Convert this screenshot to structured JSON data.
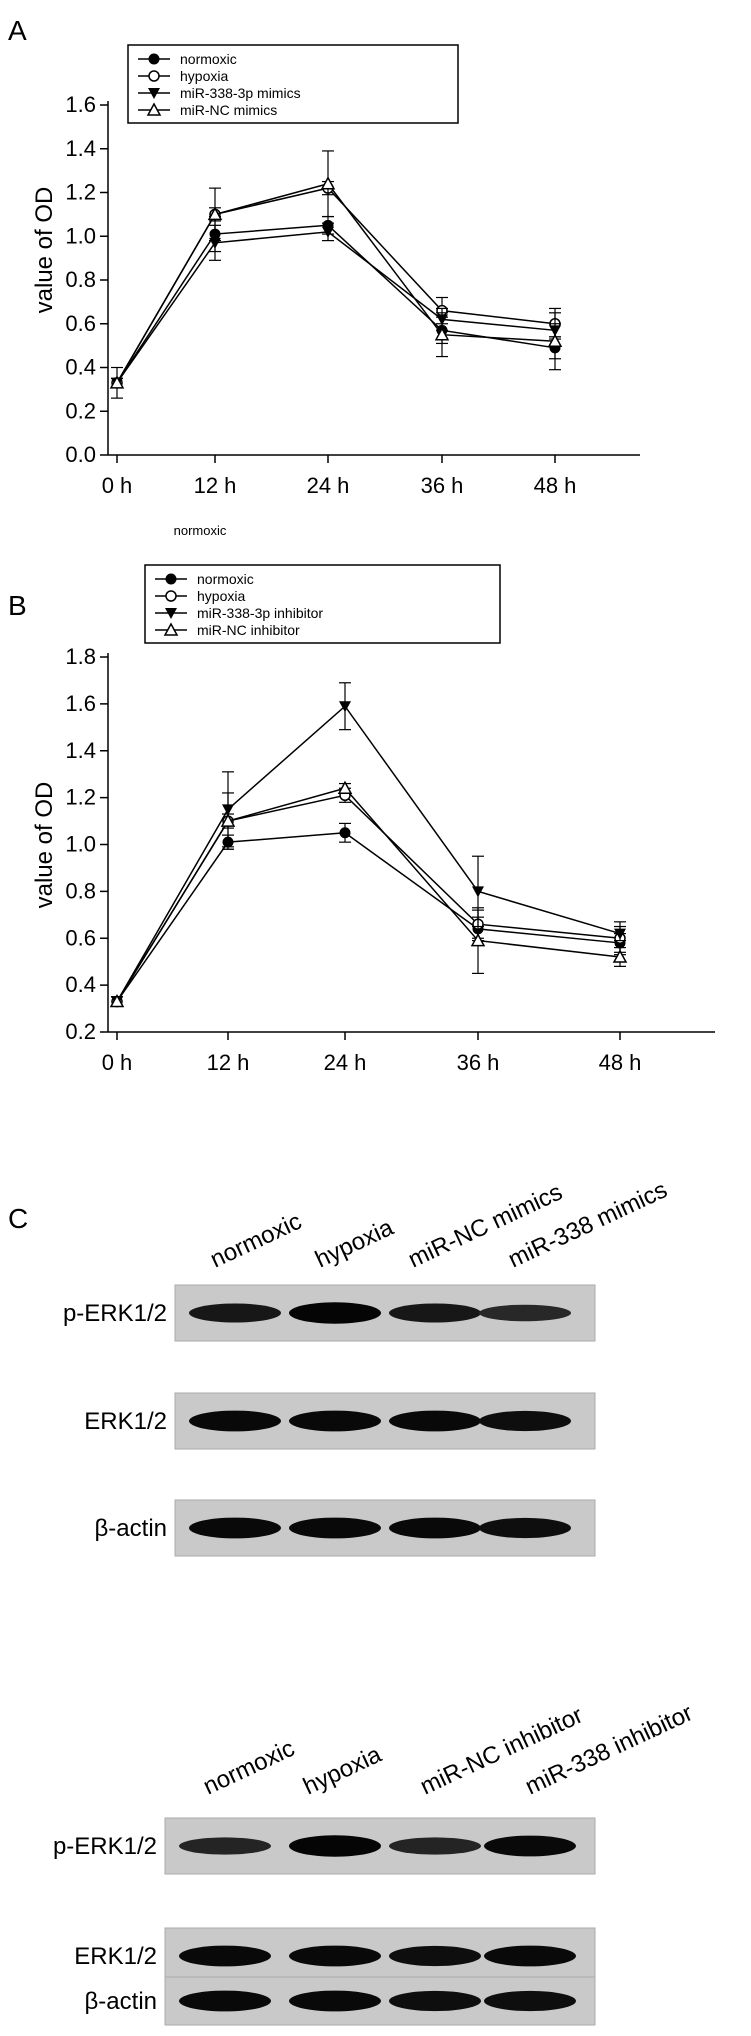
{
  "panels": {
    "a": "A",
    "b": "B",
    "c": "C"
  },
  "chart_data": [
    {
      "type": "line",
      "title": "",
      "xlabel": "",
      "ylabel": "value of OD",
      "categories": [
        "0 h",
        "12 h",
        "24 h",
        "36 h",
        "48 h"
      ],
      "yticks": [
        "0.0",
        "0.2",
        "0.4",
        "0.6",
        "0.8",
        "1.0",
        "1.2",
        "1.4",
        "1.6"
      ],
      "ylim": [
        0.0,
        1.6
      ],
      "note": "normoxic",
      "legend_position": "top-left",
      "series": [
        {
          "name": "normoxic",
          "marker": "filled-circle",
          "values": [
            0.33,
            1.01,
            1.05,
            0.57,
            0.49
          ],
          "errors": [
            0.07,
            0.08,
            0.04,
            0.06,
            0.05
          ]
        },
        {
          "name": "hypoxia",
          "marker": "open-circle",
          "values": [
            0.33,
            1.1,
            1.22,
            0.66,
            0.6
          ],
          "errors": [
            0.02,
            0.12,
            0.03,
            0.06,
            0.07
          ]
        },
        {
          "name": "miR-338-3p mimics",
          "marker": "filled-triangle-down",
          "values": [
            0.33,
            0.97,
            1.02,
            0.62,
            0.57
          ],
          "errors": [
            0.02,
            0.08,
            0.04,
            0.05,
            0.03
          ]
        },
        {
          "name": "miR-NC mimics",
          "marker": "open-triangle-up",
          "values": [
            0.33,
            1.1,
            1.24,
            0.55,
            0.52
          ],
          "errors": [
            0.02,
            0.03,
            0.15,
            0.1,
            0.13
          ]
        }
      ]
    },
    {
      "type": "line",
      "title": "",
      "xlabel": "",
      "ylabel": "value of OD",
      "categories": [
        "0 h",
        "12 h",
        "24 h",
        "36 h",
        "48 h"
      ],
      "yticks": [
        "0.2",
        "0.4",
        "0.6",
        "0.8",
        "1.0",
        "1.2",
        "1.4",
        "1.6",
        "1.8"
      ],
      "ylim": [
        0.2,
        1.8
      ],
      "legend_position": "top-left",
      "series": [
        {
          "name": "normoxic",
          "marker": "filled-circle",
          "values": [
            0.33,
            1.01,
            1.05,
            0.64,
            0.58
          ],
          "errors": [
            0.02,
            0.03,
            0.04,
            0.05,
            0.04
          ]
        },
        {
          "name": "hypoxia",
          "marker": "open-circle",
          "values": [
            0.33,
            1.1,
            1.21,
            0.66,
            0.6
          ],
          "errors": [
            0.02,
            0.12,
            0.03,
            0.06,
            0.07
          ]
        },
        {
          "name": "miR-338-3p inhibitor",
          "marker": "filled-triangle-down",
          "values": [
            0.33,
            1.15,
            1.59,
            0.8,
            0.62
          ],
          "errors": [
            0.02,
            0.16,
            0.1,
            0.15,
            0.03
          ]
        },
        {
          "name": "miR-NC inhibitor",
          "marker": "open-triangle-up",
          "values": [
            0.33,
            1.1,
            1.24,
            0.59,
            0.52
          ],
          "errors": [
            0.02,
            0.03,
            0.02,
            0.14,
            0.04
          ]
        }
      ]
    }
  ],
  "blots": [
    {
      "lanes": [
        "normoxic",
        "hypoxia",
        "miR-NC mimics",
        "miR-338 mimics"
      ],
      "rows": [
        {
          "label": "p-ERK1/2",
          "intensity": [
            0.75,
            0.95,
            0.75,
            0.55
          ]
        },
        {
          "label": "ERK1/2",
          "intensity": [
            0.9,
            0.9,
            0.9,
            0.85
          ]
        },
        {
          "label": "β-actin",
          "intensity": [
            0.9,
            0.9,
            0.9,
            0.85
          ]
        }
      ]
    },
    {
      "lanes": [
        "normoxic",
        "hypoxia",
        "miR-NC inhibitor",
        "miR-338 inhibitor"
      ],
      "rows": [
        {
          "label": "p-ERK1/2",
          "intensity": [
            0.6,
            0.95,
            0.6,
            0.9
          ]
        },
        {
          "label": "ERK1/2",
          "intensity": [
            0.9,
            0.9,
            0.85,
            0.9
          ]
        },
        {
          "label": "β-actin",
          "intensity": [
            0.9,
            0.9,
            0.85,
            0.85
          ]
        }
      ]
    }
  ]
}
